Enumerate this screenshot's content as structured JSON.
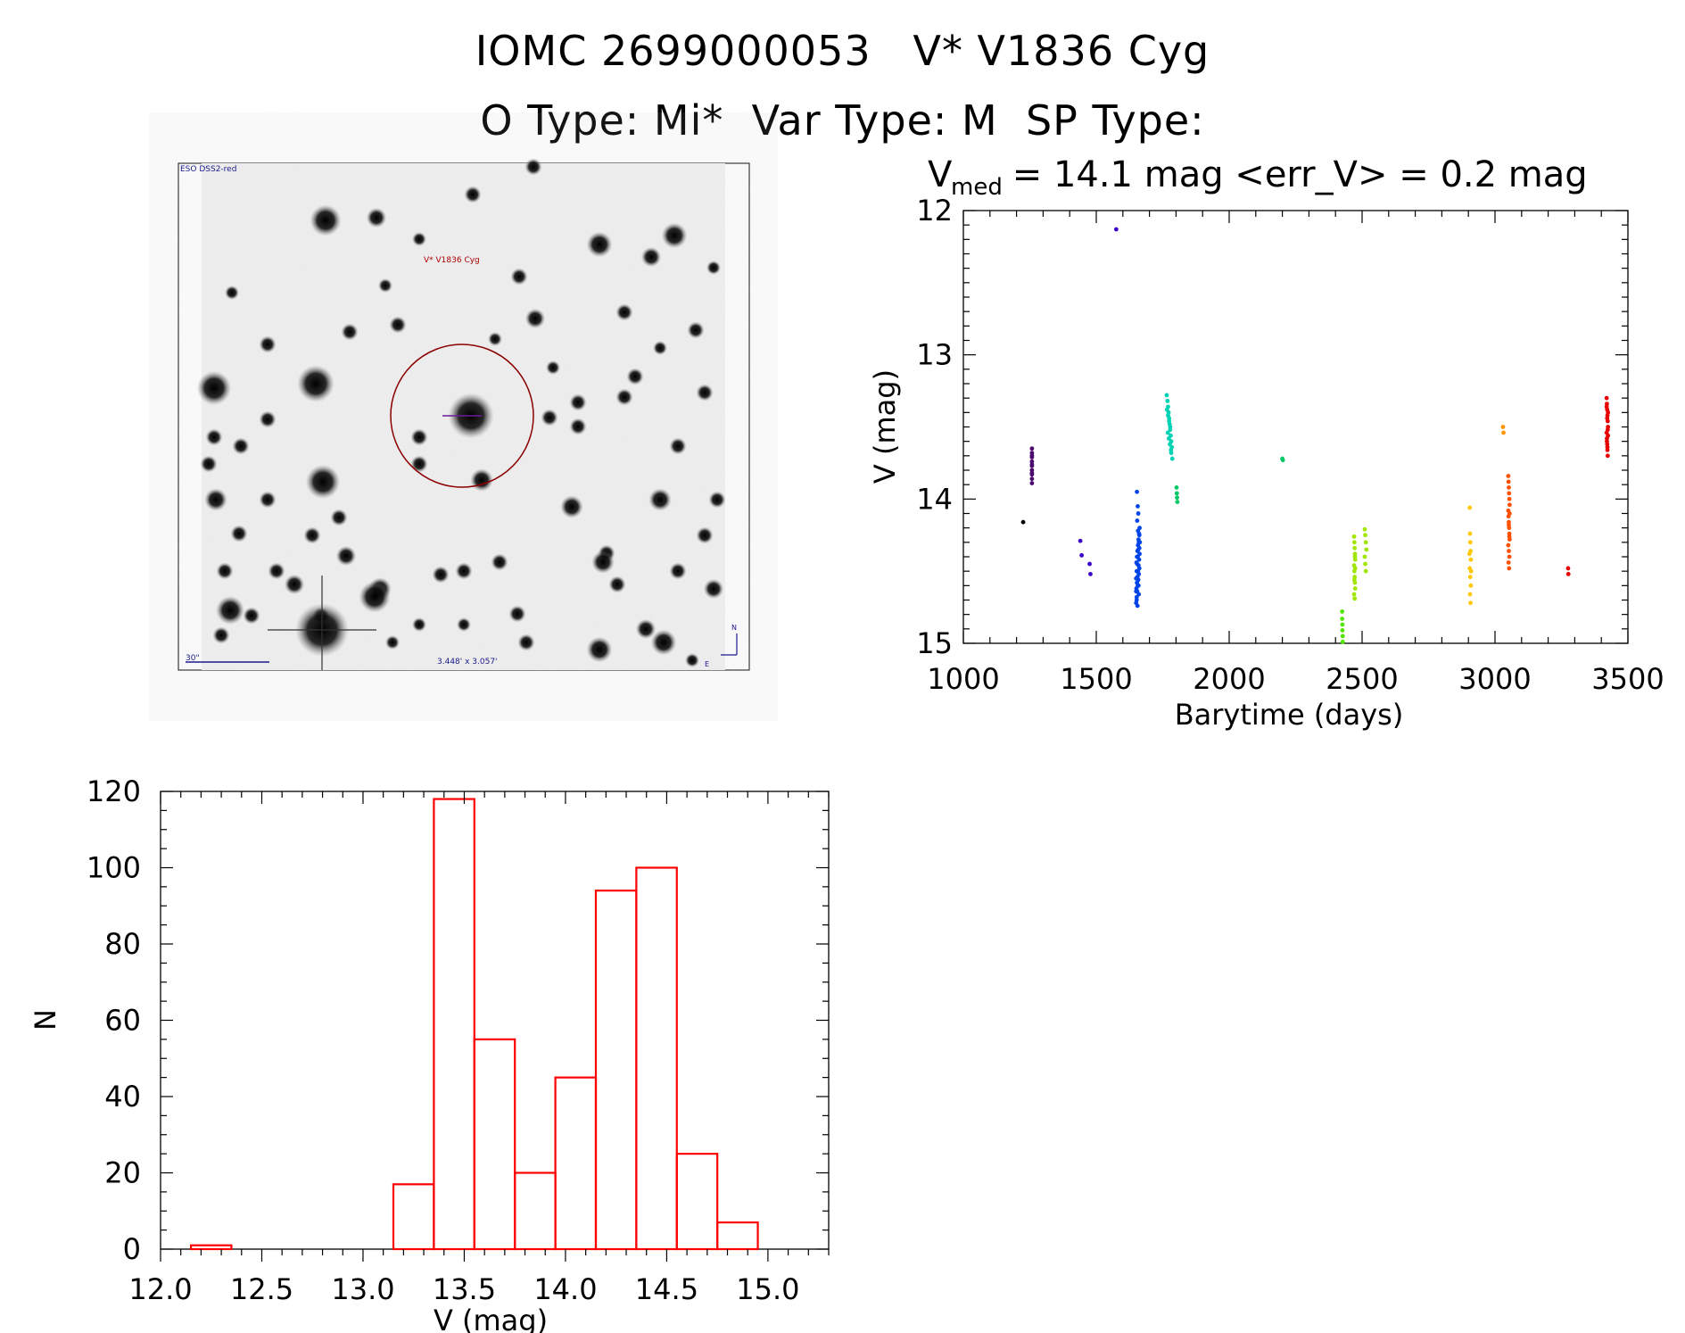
{
  "header": {
    "line1": "IOMC 2699000053   V* V1836 Cyg",
    "line2": "O Type: Mi*  Var Type: M  SP Type:"
  },
  "finder_image": {
    "survey_label": "ESO DSS2-red",
    "target_label": "V* V1836 Cyg",
    "scale_label": "30\"",
    "fov_label": "3.448' x 3.057'",
    "north_label": "N",
    "east_label": "E"
  },
  "chart_data": [
    {
      "type": "scatter",
      "title_main": "V",
      "title_sub": "med",
      "title_rest": " = 14.1 mag <err_V> = 0.2 mag",
      "xlabel": "Barytime (days)",
      "ylabel": "V (mag)",
      "xlim": [
        1000,
        3500
      ],
      "ylim": [
        15,
        12
      ],
      "xticks": [
        "1000",
        "1500",
        "2000",
        "2500",
        "3000",
        "3500"
      ],
      "yticks": [
        "12",
        "13",
        "14",
        "15"
      ],
      "series": [
        {
          "name": "s1",
          "color": "#000000",
          "x": [
            1225
          ],
          "y": [
            14.16
          ]
        },
        {
          "name": "s2",
          "color": "#4b0a6e",
          "x": [
            1258,
            1258,
            1258,
            1258,
            1258,
            1258,
            1258,
            1258,
            1258,
            1258,
            1258,
            1258
          ],
          "y": [
            13.65,
            13.68,
            13.71,
            13.74,
            13.77,
            13.8,
            13.83,
            13.86,
            13.7,
            13.76,
            13.82,
            13.89
          ]
        },
        {
          "name": "s3",
          "color": "#3a00c8",
          "x": [
            1440,
            1445,
            1475,
            1478,
            1575
          ],
          "y": [
            14.29,
            14.39,
            14.45,
            14.52,
            12.13
          ]
        },
        {
          "name": "s4",
          "color": "#0044e8",
          "x": [
            1650,
            1652,
            1654,
            1656,
            1658,
            1660,
            1662,
            1651,
            1653,
            1655,
            1657,
            1659,
            1661,
            1663,
            1650,
            1652,
            1654,
            1656,
            1658,
            1660,
            1662,
            1651,
            1653,
            1655,
            1657,
            1659,
            1661,
            1663,
            1654,
            1658,
            1656,
            1660,
            1652,
            1650,
            1662,
            1664,
            1655,
            1657,
            1653,
            1659
          ],
          "y": [
            14.72,
            14.68,
            14.64,
            14.6,
            14.56,
            14.52,
            14.48,
            14.44,
            14.4,
            14.36,
            14.32,
            14.28,
            14.24,
            14.2,
            14.55,
            14.5,
            14.45,
            14.4,
            14.35,
            14.3,
            14.25,
            14.62,
            14.58,
            14.54,
            14.5,
            14.46,
            14.42,
            14.38,
            14.15,
            14.1,
            14.05,
            14.66,
            14.7,
            14.64,
            14.34,
            14.3,
            14.74,
            14.22,
            13.95,
            14.6
          ]
        },
        {
          "name": "s5",
          "color": "#00d2b4",
          "x": [
            1765,
            1768,
            1770,
            1772,
            1774,
            1776,
            1778,
            1780,
            1782,
            1784,
            1766,
            1770,
            1774,
            1778,
            1782,
            1786,
            1769,
            1773,
            1777,
            1781
          ],
          "y": [
            13.28,
            13.32,
            13.36,
            13.4,
            13.44,
            13.48,
            13.52,
            13.56,
            13.6,
            13.64,
            13.38,
            13.42,
            13.46,
            13.5,
            13.68,
            13.72,
            13.54,
            13.58,
            13.62,
            13.66
          ]
        },
        {
          "name": "s6",
          "color": "#00c864",
          "x": [
            1802,
            1803,
            1804,
            1805,
            2200,
            2202
          ],
          "y": [
            13.92,
            13.96,
            13.99,
            14.02,
            13.72,
            13.73
          ]
        },
        {
          "name": "s7",
          "color": "#50e600",
          "x": [
            2425,
            2425,
            2426,
            2426,
            2427,
            2427
          ],
          "y": [
            14.78,
            14.83,
            14.87,
            14.91,
            14.95,
            14.99
          ]
        },
        {
          "name": "s8",
          "color": "#a0e600",
          "x": [
            2470,
            2471,
            2472,
            2473,
            2474,
            2470,
            2471,
            2472,
            2473,
            2474,
            2470,
            2472,
            2474,
            2471,
            2473,
            2510,
            2512,
            2514,
            2516,
            2510,
            2512,
            2514
          ],
          "y": [
            14.26,
            14.3,
            14.34,
            14.38,
            14.42,
            14.46,
            14.5,
            14.54,
            14.58,
            14.62,
            14.66,
            14.69,
            14.48,
            14.56,
            14.4,
            14.21,
            14.25,
            14.3,
            14.35,
            14.4,
            14.45,
            14.5
          ]
        },
        {
          "name": "s9",
          "color": "#ffc800",
          "x": [
            2905,
            2906,
            2907,
            2908,
            2909,
            2905,
            2907,
            2909,
            2906,
            2908,
            2904,
            2910
          ],
          "y": [
            14.06,
            14.24,
            14.3,
            14.36,
            14.42,
            14.48,
            14.54,
            14.6,
            14.66,
            14.72,
            14.38,
            14.5
          ]
        },
        {
          "name": "s10",
          "color": "#ff9600",
          "x": [
            3030,
            3032
          ],
          "y": [
            13.5,
            13.54
          ]
        },
        {
          "name": "s11",
          "color": "#ff5000",
          "x": [
            3050,
            3051,
            3052,
            3053,
            3054,
            3055,
            3050,
            3051,
            3052,
            3053,
            3054,
            3055,
            3050,
            3052,
            3054,
            3051,
            3053,
            3055,
            3052,
            3054
          ],
          "y": [
            13.84,
            13.88,
            13.92,
            13.96,
            14.0,
            14.04,
            14.08,
            14.12,
            14.16,
            14.2,
            14.24,
            14.28,
            14.32,
            14.36,
            14.4,
            14.44,
            14.48,
            14.1,
            14.18,
            14.26
          ]
        },
        {
          "name": "s12",
          "color": "#e60000",
          "x": [
            3275,
            3276,
            3420,
            3421,
            3422,
            3423,
            3424,
            3425,
            3420,
            3421,
            3422,
            3423,
            3424,
            3425,
            3420,
            3422,
            3424,
            3421,
            3423,
            3425
          ],
          "y": [
            14.48,
            14.52,
            13.3,
            13.34,
            13.38,
            13.42,
            13.46,
            13.5,
            13.54,
            13.58,
            13.62,
            13.66,
            13.7,
            13.4,
            13.36,
            13.44,
            13.52,
            13.6,
            13.64,
            13.56
          ]
        }
      ]
    },
    {
      "type": "bar",
      "subtype": "histogram",
      "xlabel": "V (mag)",
      "ylabel": "N",
      "xlim": [
        12.0,
        15.3
      ],
      "ylim": [
        0,
        120
      ],
      "xticks": [
        "12.0",
        "12.5",
        "13.0",
        "13.5",
        "14.0",
        "14.5",
        "15.0"
      ],
      "yticks": [
        "0",
        "20",
        "40",
        "60",
        "80",
        "100",
        "120"
      ],
      "bin_edges": [
        12.15,
        12.35,
        12.55,
        12.75,
        12.95,
        13.15,
        13.35,
        13.55,
        13.75,
        13.95,
        14.15,
        14.35,
        14.55,
        14.75,
        14.95
      ],
      "values": [
        1,
        0,
        0,
        0,
        0,
        17,
        118,
        55,
        20,
        45,
        94,
        100,
        25,
        7
      ],
      "color": "#ff0000"
    }
  ]
}
